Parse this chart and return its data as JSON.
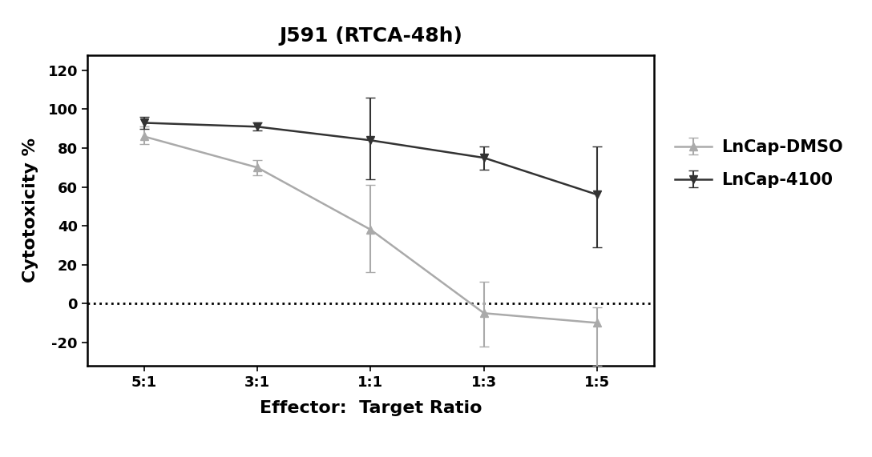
{
  "title": "J591 (RTCA-48h)",
  "xlabel": "Effector:  Target Ratio",
  "ylabel": "Cytotoxicity %",
  "x_labels": [
    "5:1",
    "3:1",
    "1:1",
    "1:3",
    "1:5"
  ],
  "x_values": [
    0,
    1,
    2,
    3,
    4
  ],
  "dmso_y": [
    86,
    70,
    38,
    -5,
    -10
  ],
  "dmso_yerr_upper": [
    5,
    4,
    23,
    16,
    8
  ],
  "dmso_yerr_lower": [
    4,
    4,
    22,
    17,
    22
  ],
  "lncap4100_y": [
    93,
    91,
    84,
    75,
    56
  ],
  "lncap4100_yerr_upper": [
    3,
    2,
    22,
    6,
    25
  ],
  "lncap4100_yerr_lower": [
    3,
    2,
    20,
    6,
    27
  ],
  "dmso_color": "#aaaaaa",
  "lncap4100_color": "#333333",
  "ylim": [
    -32,
    128
  ],
  "yticks": [
    -20,
    0,
    20,
    40,
    60,
    80,
    100,
    120
  ],
  "legend_labels": [
    "LnCap-DMSO",
    "LnCap-4100"
  ],
  "title_fontsize": 18,
  "axis_label_fontsize": 16,
  "tick_fontsize": 13,
  "legend_fontsize": 15,
  "background_color": "#ffffff"
}
